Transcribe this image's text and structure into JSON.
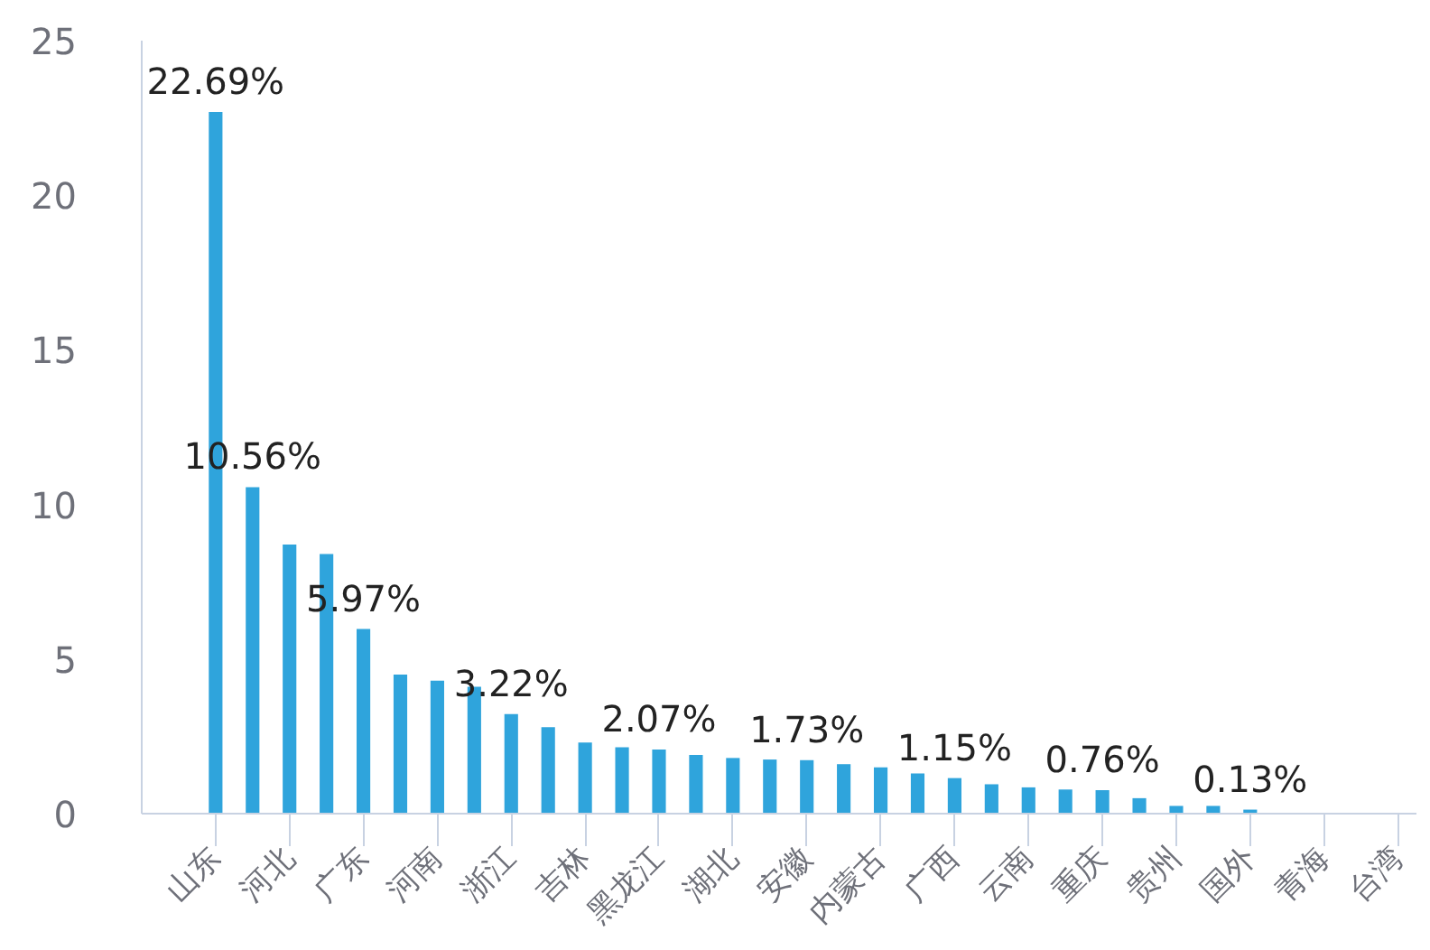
{
  "chart_data": {
    "type": "bar",
    "categories": [
      "山东",
      null,
      "河北",
      null,
      "广东",
      null,
      "河南",
      null,
      "浙江",
      null,
      "吉林",
      null,
      "黑龙江",
      null,
      "湖北",
      null,
      "安徽",
      null,
      "内蒙古",
      null,
      "广西",
      null,
      "云南",
      null,
      "重庆",
      null,
      "贵州",
      null,
      "国外",
      null,
      "青海",
      null,
      "台湾"
    ],
    "values": [
      22.69,
      10.56,
      8.7,
      8.4,
      5.97,
      4.5,
      4.3,
      4.1,
      3.22,
      2.8,
      2.3,
      2.15,
      2.07,
      1.9,
      1.8,
      1.75,
      1.73,
      1.6,
      1.5,
      1.3,
      1.15,
      0.95,
      0.85,
      0.78,
      0.76,
      0.5,
      0.25,
      0.25,
      0.13,
      0,
      0,
      0,
      0
    ],
    "value_labels": [
      "22.69%",
      "10.56%",
      null,
      null,
      "5.97%",
      null,
      null,
      null,
      "3.22%",
      null,
      null,
      null,
      "2.07%",
      null,
      null,
      null,
      "1.73%",
      null,
      null,
      null,
      "1.15%",
      null,
      null,
      null,
      "0.76%",
      null,
      null,
      null,
      "0.13%",
      null,
      null,
      null,
      null
    ],
    "color": "#2fa4dc",
    "ylim": [
      0,
      25
    ],
    "yticks": [
      0,
      5,
      10,
      15,
      20,
      25
    ]
  }
}
